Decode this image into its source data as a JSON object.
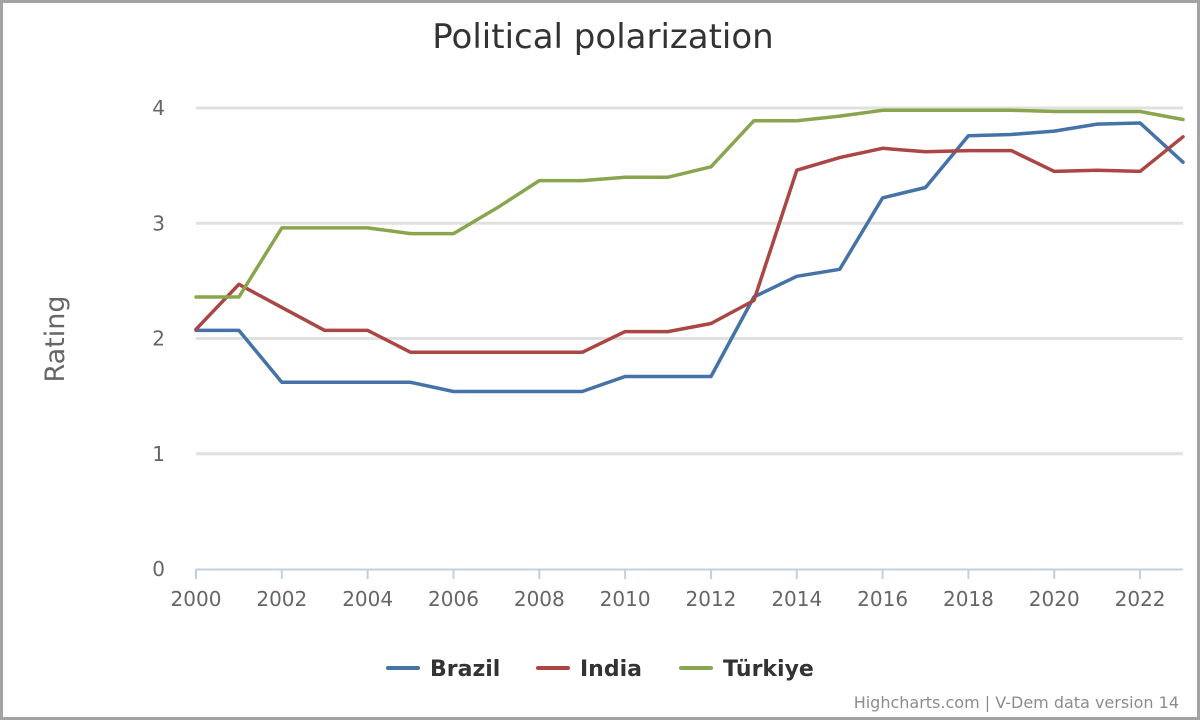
{
  "chart_data": {
    "type": "line",
    "title": "Political polarization",
    "ylabel": "Rating",
    "xlabel": "",
    "ylim": [
      0,
      4
    ],
    "yticks": [
      0,
      1,
      2,
      3,
      4
    ],
    "xlim": [
      2000,
      2023
    ],
    "xticks": [
      2000,
      2002,
      2004,
      2006,
      2008,
      2010,
      2012,
      2014,
      2016,
      2018,
      2020,
      2022
    ],
    "grid": true,
    "legend_position": "bottom-center",
    "x": [
      2000,
      2001,
      2002,
      2003,
      2004,
      2005,
      2006,
      2007,
      2008,
      2009,
      2010,
      2011,
      2012,
      2013,
      2014,
      2015,
      2016,
      2017,
      2018,
      2019,
      2020,
      2021,
      2022,
      2023
    ],
    "series": [
      {
        "name": "Brazil",
        "color": "#4572a7",
        "values": [
          2.07,
          2.07,
          1.62,
          1.62,
          1.62,
          1.62,
          1.54,
          1.54,
          1.54,
          1.54,
          1.67,
          1.67,
          1.67,
          2.36,
          2.54,
          2.6,
          3.22,
          3.31,
          3.76,
          3.77,
          3.8,
          3.86,
          3.87,
          3.53
        ]
      },
      {
        "name": "India",
        "color": "#aa4643",
        "values": [
          2.08,
          2.47,
          2.27,
          2.07,
          2.07,
          1.88,
          1.88,
          1.88,
          1.88,
          1.88,
          2.06,
          2.06,
          2.13,
          2.33,
          3.46,
          3.57,
          3.65,
          3.62,
          3.63,
          3.63,
          3.45,
          3.46,
          3.45,
          3.75
        ]
      },
      {
        "name": "Türkiye",
        "color": "#89a54e",
        "values": [
          2.36,
          2.36,
          2.96,
          2.96,
          2.96,
          2.91,
          2.91,
          3.13,
          3.37,
          3.37,
          3.4,
          3.4,
          3.49,
          3.89,
          3.89,
          3.93,
          3.98,
          3.98,
          3.98,
          3.98,
          3.97,
          3.97,
          3.97,
          3.9
        ]
      }
    ]
  },
  "credits": "Highcharts.com | V-Dem data version 14"
}
